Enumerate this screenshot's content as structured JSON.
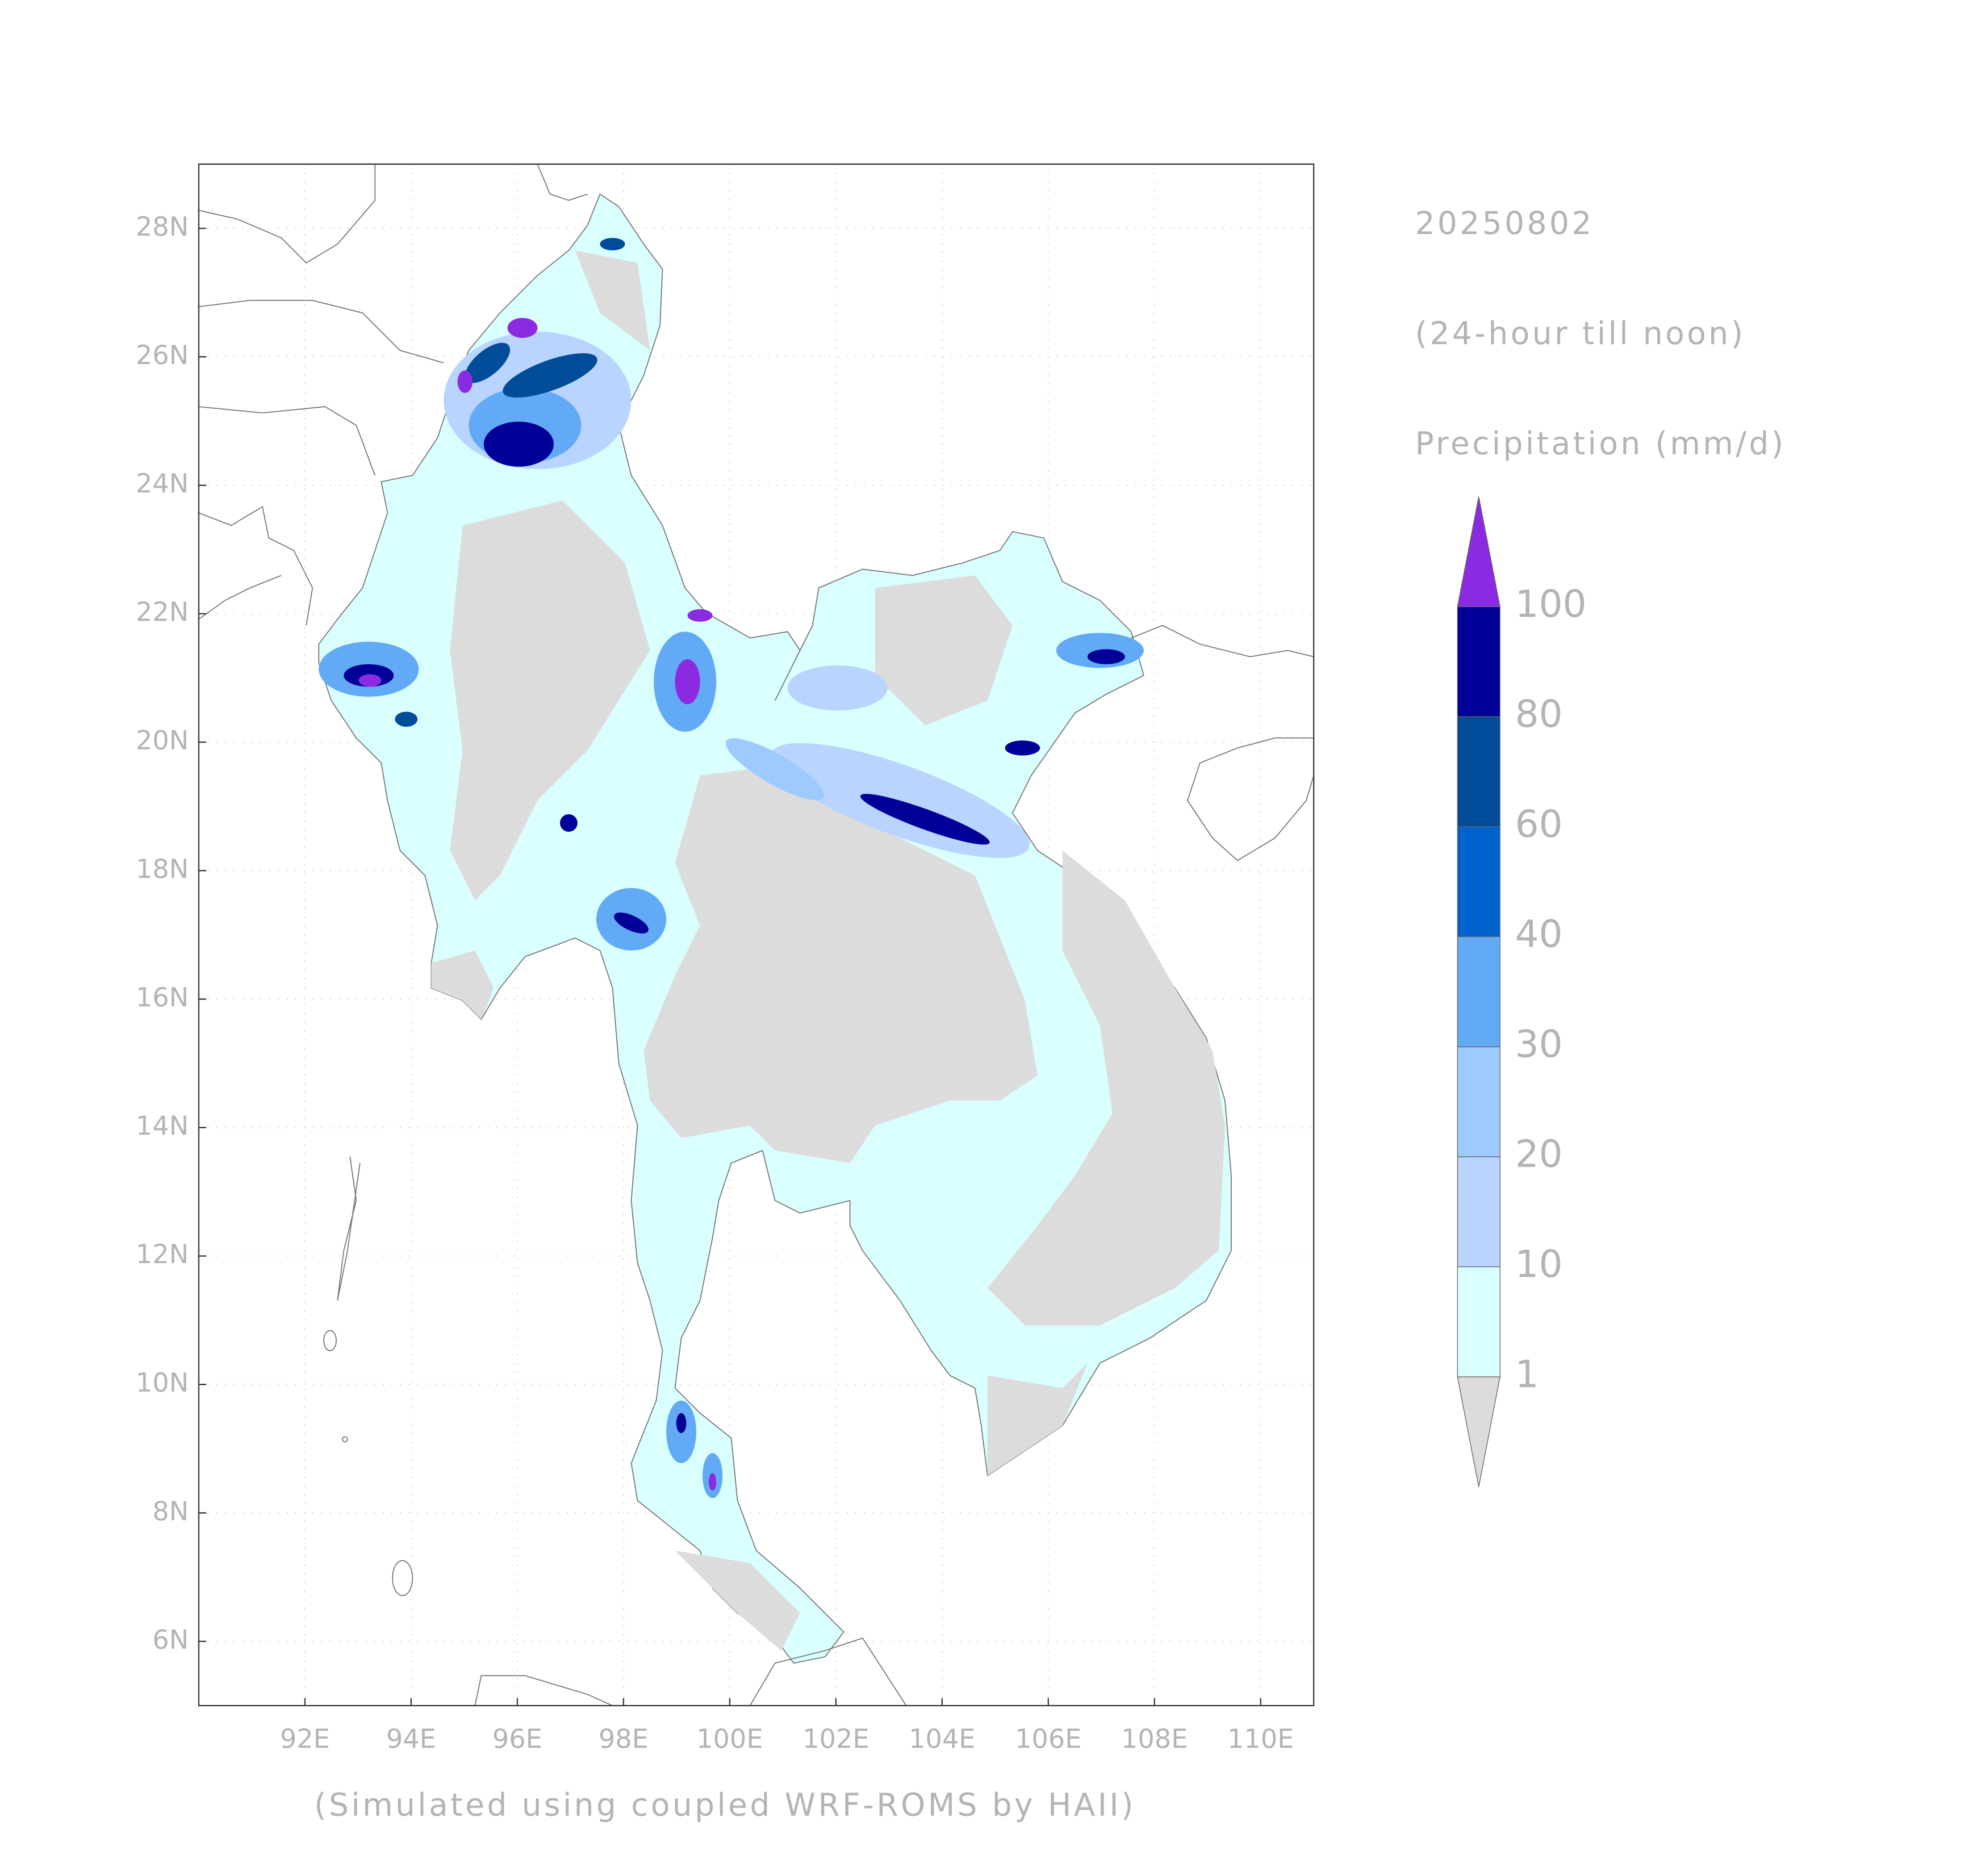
{
  "header": {
    "date": "20250802",
    "period": "(24-hour till noon)",
    "variable": "Precipitation (mm/d)"
  },
  "map": {
    "xlim": [
      90,
      111
    ],
    "ylim": [
      5,
      29
    ],
    "xticks": [
      {
        "value": 92,
        "label": "92E"
      },
      {
        "value": 94,
        "label": "94E"
      },
      {
        "value": 96,
        "label": "96E"
      },
      {
        "value": 98,
        "label": "98E"
      },
      {
        "value": 100,
        "label": "100E"
      },
      {
        "value": 102,
        "label": "102E"
      },
      {
        "value": 104,
        "label": "104E"
      },
      {
        "value": 106,
        "label": "106E"
      },
      {
        "value": 108,
        "label": "108E"
      },
      {
        "value": 110,
        "label": "110E"
      }
    ],
    "yticks": [
      {
        "value": 6,
        "label": "6N"
      },
      {
        "value": 8,
        "label": "8N"
      },
      {
        "value": 10,
        "label": "10N"
      },
      {
        "value": 12,
        "label": "12N"
      },
      {
        "value": 14,
        "label": "14N"
      },
      {
        "value": 16,
        "label": "16N"
      },
      {
        "value": 18,
        "label": "18N"
      },
      {
        "value": 20,
        "label": "20N"
      },
      {
        "value": 22,
        "label": "22N"
      },
      {
        "value": 24,
        "label": "24N"
      },
      {
        "value": 26,
        "label": "26N"
      },
      {
        "value": 28,
        "label": "28N"
      }
    ],
    "grid": true
  },
  "colorbar": {
    "levels": [
      1,
      10,
      20,
      30,
      40,
      60,
      80,
      100
    ],
    "colors": [
      "#dcdcdc",
      "#d9ffff",
      "#b8d4ff",
      "#9ecbff",
      "#62aaf6",
      "#0062cc",
      "#004c99",
      "#000099",
      "#8a2be2"
    ]
  },
  "footer": "(Simulated using coupled WRF-ROMS by HAII)"
}
